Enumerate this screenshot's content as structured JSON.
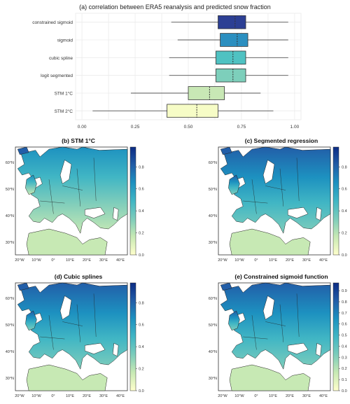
{
  "chart_data": [
    {
      "type": "boxplot",
      "title": "(a) correlation between ERA5 reanalysis and predicted snow fraction",
      "xlim": [
        -0.03,
        1.03
      ],
      "x_ticks": [
        0.0,
        0.25,
        0.5,
        0.75,
        1.0
      ],
      "x_tick_labels": [
        "0.00",
        "0.25",
        "0.50",
        "0.75",
        "1.00"
      ],
      "grid": true,
      "categories": [
        "constrained sigmoid",
        "sigmoid",
        "cubic spline",
        "logit segmented",
        "STM 1°C",
        "STM 2°C"
      ],
      "series": [
        {
          "name": "constrained sigmoid",
          "whisker_low": 0.42,
          "q1": 0.64,
          "median": 0.72,
          "q3": 0.77,
          "whisker_high": 0.97,
          "color": "#2c3f94"
        },
        {
          "name": "sigmoid",
          "whisker_low": 0.45,
          "q1": 0.65,
          "median": 0.73,
          "q3": 0.78,
          "whisker_high": 0.97,
          "color": "#2b8fc0"
        },
        {
          "name": "cubic spline",
          "whisker_low": 0.41,
          "q1": 0.63,
          "median": 0.71,
          "q3": 0.77,
          "whisker_high": 0.97,
          "color": "#4fc2c2"
        },
        {
          "name": "logit segmented",
          "whisker_low": 0.41,
          "q1": 0.63,
          "median": 0.71,
          "q3": 0.77,
          "whisker_high": 0.97,
          "color": "#7dcfbb"
        },
        {
          "name": "STM 1°C",
          "whisker_low": 0.23,
          "q1": 0.5,
          "median": 0.6,
          "q3": 0.67,
          "whisker_high": 0.84,
          "color": "#c8e8b5"
        },
        {
          "name": "STM 2°C",
          "whisker_low": 0.05,
          "q1": 0.4,
          "median": 0.54,
          "q3": 0.64,
          "whisker_high": 0.9,
          "color": "#f6fcc6"
        }
      ]
    },
    {
      "type": "heatmap",
      "title": "(b) STM 1°C",
      "colorbar_ticks": [
        "0.0",
        "0.2",
        "0.4",
        "0.6",
        "0.8"
      ],
      "lon_labels": [
        "20°W",
        "10°W",
        "0°",
        "10°E",
        "20°E",
        "30°E",
        "40°E"
      ],
      "lat_labels": [
        "60°N",
        "50°N",
        "40°N",
        "30°N"
      ]
    },
    {
      "type": "heatmap",
      "title": "(c) Segmented regression",
      "colorbar_ticks": [
        "0.0",
        "0.2",
        "0.4",
        "0.6",
        "0.8"
      ],
      "lon_labels": [
        "20°W",
        "10°W",
        "0°",
        "10°E",
        "20°E",
        "30°E",
        "40°E"
      ],
      "lat_labels": [
        "60°N",
        "50°N",
        "40°N",
        "30°N"
      ]
    },
    {
      "type": "heatmap",
      "title": "(d) Cubic splines",
      "colorbar_ticks": [
        "0.0",
        "0.2",
        "0.4",
        "0.6",
        "0.8"
      ],
      "lon_labels": [
        "20°W",
        "10°W",
        "0°",
        "10°E",
        "20°E",
        "30°E",
        "40°E"
      ],
      "lat_labels": [
        "60°N",
        "50°N",
        "40°N",
        "30°N"
      ]
    },
    {
      "type": "heatmap",
      "title": "(e) Constrained sigmoid function",
      "colorbar_ticks": [
        "0.0",
        "0.1",
        "0.2",
        "0.3",
        "0.4",
        "0.5",
        "0.6",
        "0.7",
        "0.8",
        "0.9"
      ],
      "lon_labels": [
        "20°W",
        "10°W",
        "0°",
        "10°E",
        "20°E",
        "30°E",
        "40°E"
      ],
      "lat_labels": [
        "60°N",
        "50°N",
        "40°N",
        "30°N"
      ]
    }
  ],
  "colormap": [
    "#ffffcc",
    "#c7e9b4",
    "#7fcdbb",
    "#41b6c4",
    "#1d91c0",
    "#225ea8",
    "#0c2c84"
  ]
}
